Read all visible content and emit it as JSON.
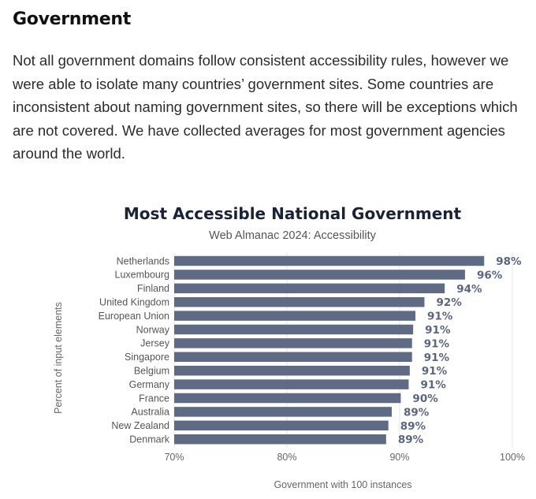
{
  "section": {
    "heading": "Government",
    "paragraph": "Not all government domains follow consistent accessibility rules, however we were able to isolate many countries’ government sites. Some countries are inconsistent about naming government sites, so there will be exceptions which are not covered. We have collected averages for most government agencies around the world."
  },
  "colors": {
    "bar": "#5f6b85",
    "value_label": "#5a6680",
    "title": "#1a2238"
  },
  "chart_data": {
    "type": "bar",
    "orientation": "horizontal",
    "title": "Most Accessible National Government",
    "subtitle": "Web Almanac 2024: Accessibility",
    "xlabel": "Government with 100 instances",
    "ylabel": "Percent of input elements",
    "categories": [
      "Netherlands",
      "Luxembourg",
      "Finland",
      "United Kingdom",
      "European Union",
      "Norway",
      "Jersey",
      "Singapore",
      "Belgium",
      "Germany",
      "France",
      "Australia",
      "New Zealand",
      "Denmark"
    ],
    "values": [
      97.5,
      95.8,
      94.0,
      92.2,
      91.4,
      91.2,
      91.1,
      91.1,
      90.9,
      90.8,
      90.1,
      89.3,
      89.0,
      88.8
    ],
    "value_labels": [
      "98%",
      "96%",
      "94%",
      "92%",
      "91%",
      "91%",
      "91%",
      "91%",
      "91%",
      "91%",
      "90%",
      "89%",
      "89%",
      "89%"
    ],
    "xlim": [
      70,
      100
    ],
    "x_ticks": [
      70,
      80,
      90,
      100
    ],
    "x_tick_labels": [
      "70%",
      "80%",
      "90%",
      "100%"
    ],
    "grid": true,
    "legend": false
  }
}
